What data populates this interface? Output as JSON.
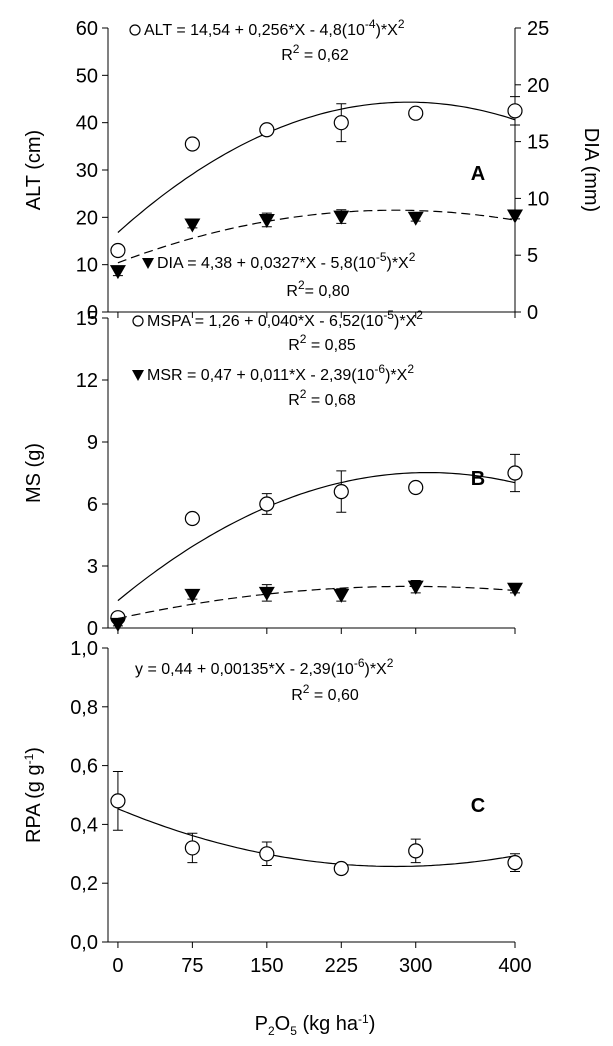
{
  "chart_data": [
    {
      "type": "scatter",
      "panel_label": "A",
      "y_label": "ALT (cm)",
      "y2_label": "DIA (mm)",
      "xlim": [
        -10,
        400
      ],
      "x": [
        0,
        75,
        150,
        225,
        300,
        400
      ],
      "xticks": [
        0,
        75,
        150,
        225,
        300,
        400
      ],
      "ylim": [
        0,
        60
      ],
      "yticks": [
        0,
        10,
        20,
        30,
        40,
        50,
        60
      ],
      "y2lim": [
        0,
        25
      ],
      "y2ticks": [
        0,
        5,
        10,
        15,
        20,
        25
      ],
      "series": [
        {
          "marker": "circle",
          "color": "#000000",
          "trend": "solid",
          "values": [
            13,
            35.5,
            38.5,
            40,
            42,
            42.5
          ],
          "errors": [
            0.8,
            0.8,
            0.8,
            4,
            0.6,
            3
          ],
          "legend": [
            "ALT = 14,54 + 0,256*X - 4,8(10",
            "-4",
            ")*X",
            "2"
          ],
          "r2": [
            "R",
            "2",
            " = 0,62"
          ]
        },
        {
          "marker": "triangle",
          "color": "#000000",
          "trend": "dashed",
          "axis": "y2",
          "values": [
            3.6,
            7.7,
            8.1,
            8.4,
            8.3,
            8.5
          ],
          "errors": [
            0.4,
            0.3,
            0.6,
            0.6,
            0.3,
            0.3
          ],
          "legend": [
            "DIA = 4,38 + 0,0327*X - 5,8(10",
            "-5",
            ")*X",
            "2"
          ],
          "r2": [
            "R",
            "2",
            "= 0,80"
          ]
        }
      ]
    },
    {
      "type": "scatter",
      "panel_label": "B",
      "y_label": "MS (g)",
      "xlim": [
        -10,
        400
      ],
      "x": [
        0,
        75,
        150,
        225,
        300,
        400
      ],
      "xticks": [
        0,
        75,
        150,
        225,
        300,
        400
      ],
      "ylim": [
        0,
        15
      ],
      "yticks": [
        0,
        3,
        6,
        9,
        12,
        15
      ],
      "series": [
        {
          "marker": "circle",
          "color": "#000000",
          "trend": "solid",
          "values": [
            0.5,
            5.3,
            6.0,
            6.6,
            6.8,
            7.5
          ],
          "errors": [
            0.2,
            0.2,
            0.5,
            1.0,
            0.2,
            0.9
          ],
          "legend": [
            "MSPA = 1,26 + 0,040*X - 6,52(10",
            "-5",
            ")*X",
            "2"
          ],
          "r2": [
            "R",
            "2",
            " = 0,85"
          ]
        },
        {
          "marker": "triangle",
          "color": "#000000",
          "trend": "dashed",
          "values": [
            0.2,
            1.6,
            1.7,
            1.6,
            2.0,
            1.9
          ],
          "errors": [
            0.1,
            0.2,
            0.4,
            0.3,
            0.3,
            0.2
          ],
          "legend": [
            "MSR = 0,47 + 0,011*X - 2,39(10",
            "-6",
            ")*X",
            "2"
          ],
          "r2": [
            "R",
            "2",
            " = 0,68"
          ]
        }
      ]
    },
    {
      "type": "scatter",
      "panel_label": "C",
      "y_label": [
        "RPA (g g",
        "-1",
        ")"
      ],
      "x_label": [
        "P",
        "2",
        "O",
        "5",
        " (kg ha",
        "-1",
        ")"
      ],
      "xlim": [
        -10,
        400
      ],
      "x": [
        0,
        75,
        150,
        225,
        300,
        400
      ],
      "xticks": [
        0,
        75,
        150,
        225,
        300,
        400
      ],
      "ylim": [
        0,
        1
      ],
      "yticks": [
        {
          "value": 0,
          "label": "0,0"
        },
        {
          "value": 0.2,
          "label": "0,2"
        },
        {
          "value": 0.4,
          "label": "0,4"
        },
        {
          "value": 0.6,
          "label": "0,6"
        },
        {
          "value": 0.8,
          "label": "0,8"
        },
        {
          "value": 1,
          "label": "1,0"
        }
      ],
      "series": [
        {
          "marker": "circle",
          "color": "#000000",
          "trend": "solid",
          "values": [
            0.48,
            0.32,
            0.3,
            0.25,
            0.31,
            0.27
          ],
          "errors": [
            0.1,
            0.05,
            0.04,
            0.01,
            0.04,
            0.03
          ],
          "legend": [
            "y = 0,44 + 0,00135*X - 2,39(10",
            "-6",
            ")*X",
            "2"
          ],
          "r2": [
            "R",
            "2",
            " = 0,60"
          ]
        }
      ]
    }
  ]
}
